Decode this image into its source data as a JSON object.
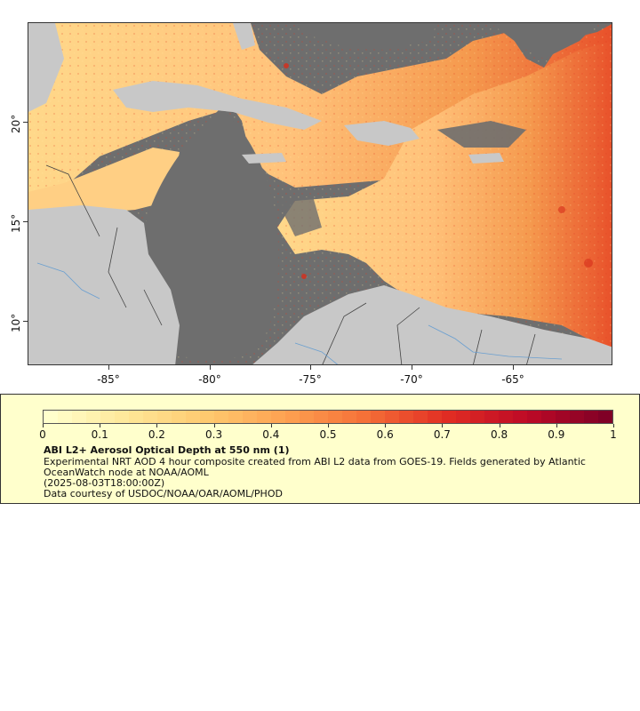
{
  "map": {
    "y_ticks": [
      "20°",
      "15°",
      "10°"
    ],
    "x_ticks": [
      "-85°",
      "-80°",
      "-75°",
      "-70°",
      "-65°"
    ],
    "colors": {
      "no_data": "#6e6e6e",
      "land": "#c8c8c8",
      "borders": "#444444",
      "rivers": "#6a9fd0"
    }
  },
  "legend": {
    "scale_labels": [
      "0",
      "0.1",
      "0.2",
      "0.3",
      "0.4",
      "0.5",
      "0.6",
      "0.7",
      "0.8",
      "0.9",
      "1"
    ],
    "title": "ABI L2+ Aerosol Optical Depth at 550 nm (1)",
    "description": "Experimental NRT AOD 4 hour composite created from ABI L2 data from GOES-19. Fields generated by Atlantic OceanWatch node at NOAA/AOML",
    "timestamp": "(2025-08-03T18:00:00Z)",
    "credit": "Data courtesy of USDOC/NOAA/OAR/AOML/PHOD"
  }
}
